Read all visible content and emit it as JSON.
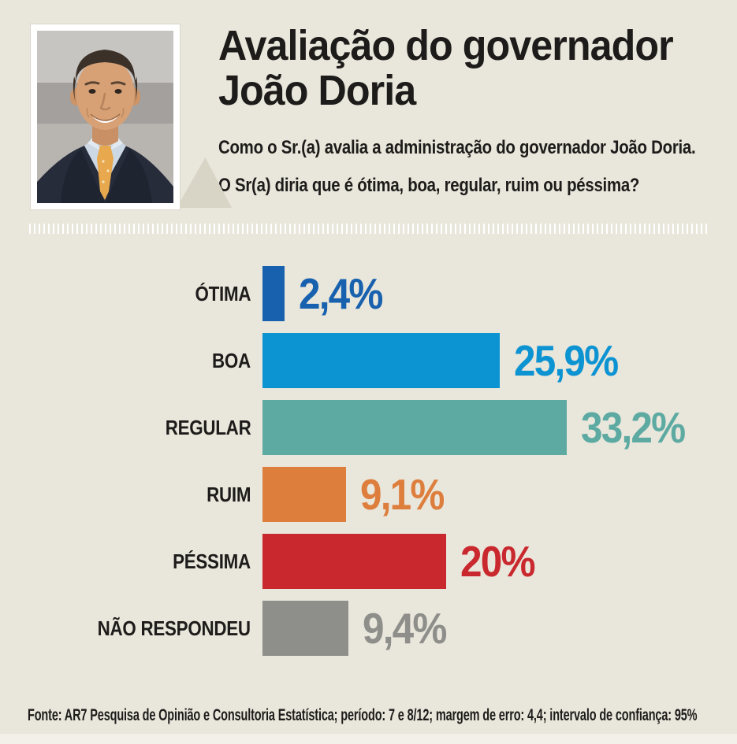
{
  "header": {
    "title_line1": "Avaliação do governador",
    "title_line2": "João Doria",
    "subtitle_line1": "Como o Sr.(a) avalia a administração do governador João Doria.",
    "subtitle_line2": "O Sr(a) diria que é ótima, boa, regular, ruim ou péssima?"
  },
  "chart_data": {
    "type": "bar",
    "orientation": "horizontal",
    "title": "Avaliação do governador João Doria",
    "categories": [
      "ÓTIMA",
      "BOA",
      "REGULAR",
      "RUIM",
      "PÉSSIMA",
      "NÃO RESPONDEU"
    ],
    "values": [
      2.4,
      25.9,
      33.2,
      9.1,
      20,
      9.4
    ],
    "value_labels": [
      "2,4%",
      "25,9%",
      "33,2%",
      "9,1%",
      "20%",
      "9,4%"
    ],
    "colors": [
      "#1761ae",
      "#0c93d2",
      "#5daaa2",
      "#dd7e3d",
      "#c9292e",
      "#8e8e8a"
    ],
    "xlim": [
      0,
      35
    ],
    "grid": false,
    "legend": "none",
    "value_label_position": "right-of-bar",
    "category_label_position": "left-of-bar"
  },
  "decorations": {
    "background_color": "#e9e6db",
    "separator_tick_color": "#ffffff",
    "photo_tail_color": "#d8d4c6",
    "portrait_icon": "joao-doria-portrait-photo"
  },
  "footer": {
    "source": "Fonte: AR7 Pesquisa de Opinião e Consultoria Estatística; período: 7 e 8/12; margem de erro: 4,4; intervalo de confiança: 95%"
  }
}
